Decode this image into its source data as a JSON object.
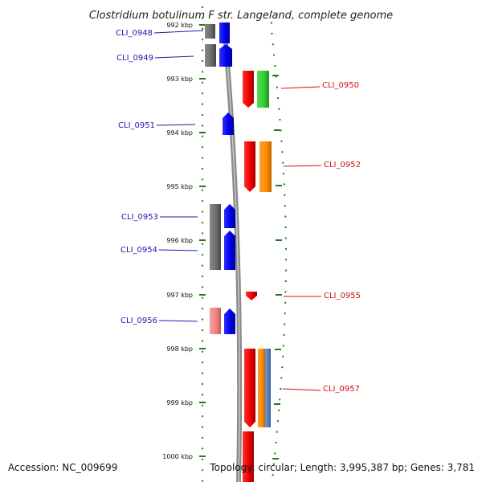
{
  "title": "Clostridium botulinum F str. Langeland, complete genome",
  "footer": {
    "accession": "Accession: NC_009699",
    "summary": "Topology: circular; Length: 3,995,387 bp; Genes: 3,781"
  },
  "kbp_ticks": [
    "992 kbp",
    "993 kbp",
    "994 kbp",
    "995 kbp",
    "996 kbp",
    "997 kbp",
    "998 kbp",
    "999 kbp",
    "1000 kbp"
  ],
  "labels_left": [
    "CLI_0948",
    "CLI_0949",
    "CLI_0951",
    "CLI_0953",
    "CLI_0954",
    "CLI_0956"
  ],
  "labels_right": [
    "CLI_0950",
    "CLI_0952",
    "CLI_0955",
    "CLI_0957"
  ],
  "colors": {
    "forward_cds": "#0000ee",
    "reverse_cds": "#ee0000",
    "gray_feature": "#707070",
    "green_feature": "#33cc33",
    "orange_feature": "#ff8c00",
    "pink_feature": "#f08080",
    "steelblue_feature": "#4f7fc0",
    "tick_green": "#227722",
    "backbone": "#909090"
  }
}
